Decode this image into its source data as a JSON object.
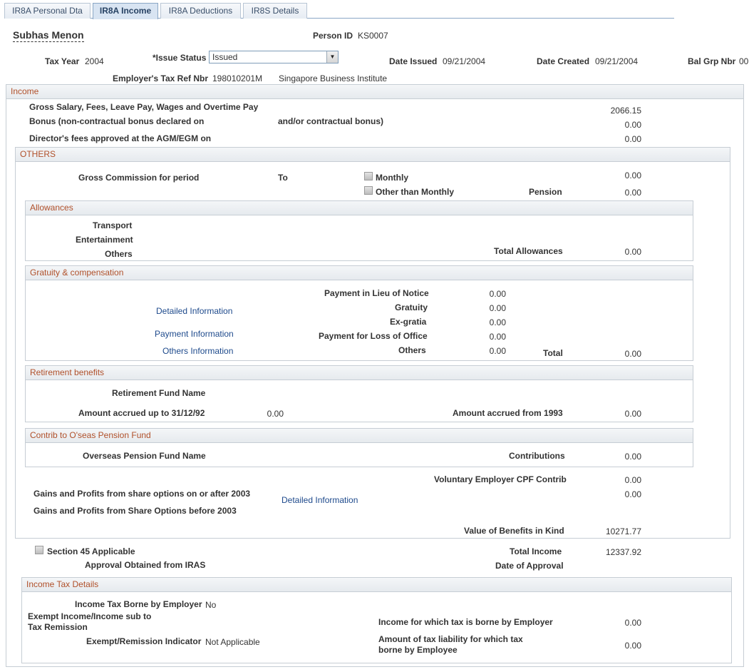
{
  "tabs": [
    {
      "label": "IR8A Personal Dta",
      "active": false
    },
    {
      "label": "IR8A Income",
      "active": true
    },
    {
      "label": "IR8A Deductions",
      "active": false
    },
    {
      "label": "IR8S Details",
      "active": false
    }
  ],
  "header": {
    "employee_name": "Subhas Menon",
    "person_id_label": "Person ID",
    "person_id": "KS0007",
    "tax_year_label": "Tax Year",
    "tax_year": "2004",
    "issue_status_label": "*Issue Status",
    "issue_status": "Issued",
    "date_issued_label": "Date Issued",
    "date_issued": "09/21/2004",
    "date_created_label": "Date Created",
    "date_created": "09/21/2004",
    "bal_grp_label": "Bal Grp Nbr",
    "bal_grp": "00",
    "employer_ref_label": "Employer's Tax Ref Nbr",
    "employer_ref": "198010201M",
    "employer_name": "Singapore Business Institute"
  },
  "income": {
    "title": "Income",
    "gross_salary_label": "Gross Salary, Fees, Leave Pay, Wages and Overtime Pay",
    "gross_salary": "2066.15",
    "bonus_label": "Bonus (non-contractual bonus declared on",
    "bonus_label2": "and/or contractual bonus)",
    "bonus": "0.00",
    "directors_fees_label": "Director's fees approved at the AGM/EGM on",
    "directors_fees": "0.00"
  },
  "others": {
    "title": "OTHERS",
    "gross_commission_label": "Gross Commission for period",
    "to_label": "To",
    "monthly_label": "Monthly",
    "other_than_monthly_label": "Other than Monthly",
    "commission": "0.00",
    "pension_label": "Pension",
    "pension": "0.00",
    "allowances": {
      "title": "Allowances",
      "transport_label": "Transport",
      "entertainment_label": "Entertainment",
      "others_label": "Others",
      "total_label": "Total Allowances",
      "total": "0.00"
    },
    "gratuity": {
      "title": "Gratuity & compensation",
      "detailed_link": "Detailed Information",
      "payment_link": "Payment Information",
      "others_link": "Others Information",
      "lieu_label": "Payment in Lieu of Notice",
      "lieu": "0.00",
      "gratuity_label": "Gratuity",
      "gratuity": "0.00",
      "exgratia_label": "Ex-gratia",
      "exgratia": "0.00",
      "loss_label": "Payment for Loss of Office",
      "loss": "0.00",
      "others_label": "Others",
      "others": "0.00",
      "total_label": "Total",
      "total": "0.00"
    },
    "retirement": {
      "title": "Retirement benefits",
      "fund_name_label": "Retirement Fund Name",
      "accrued_92_label": "Amount accrued up to 31/12/92",
      "accrued_92": "0.00",
      "accrued_93_label": "Amount accrued from 1993",
      "accrued_93": "0.00"
    },
    "pension_fund": {
      "title": "Contrib to O'seas Pension Fund",
      "fund_name_label": "Overseas Pension Fund Name",
      "contributions_label": "Contributions",
      "contributions": "0.00"
    },
    "voluntary_cpf_label": "Voluntary Employer CPF Contrib",
    "voluntary_cpf": "0.00",
    "gains_after_label": "Gains and Profits from share options on or after 2003",
    "gains_after": "0.00",
    "gains_detail_link": "Detailed Information",
    "gains_before_label": "Gains and Profits from Share Options before 2003",
    "benefits_kind_label": "Value of Benefits in Kind",
    "benefits_kind": "10271.77"
  },
  "summary": {
    "section45_label": "Section 45 Applicable",
    "approval_label": "Approval Obtained from IRAS",
    "total_income_label": "Total Income",
    "total_income": "12337.92",
    "date_approval_label": "Date of Approval"
  },
  "income_tax": {
    "title": "Income Tax Details",
    "borne_employer_label": "Income Tax Borne by Employer",
    "borne_employer": "No",
    "exempt_label_1": "Exempt Income/Income sub to",
    "exempt_label_2": "Tax Remission",
    "indicator_label": "Exempt/Remission Indicator",
    "indicator": "Not Applicable",
    "income_borne_label": "Income for which tax is borne by Employer",
    "income_borne": "0.00",
    "liability_label_1": "Amount of tax liability for which tax",
    "liability_label_2": "borne by Employee",
    "liability": "0.00"
  }
}
